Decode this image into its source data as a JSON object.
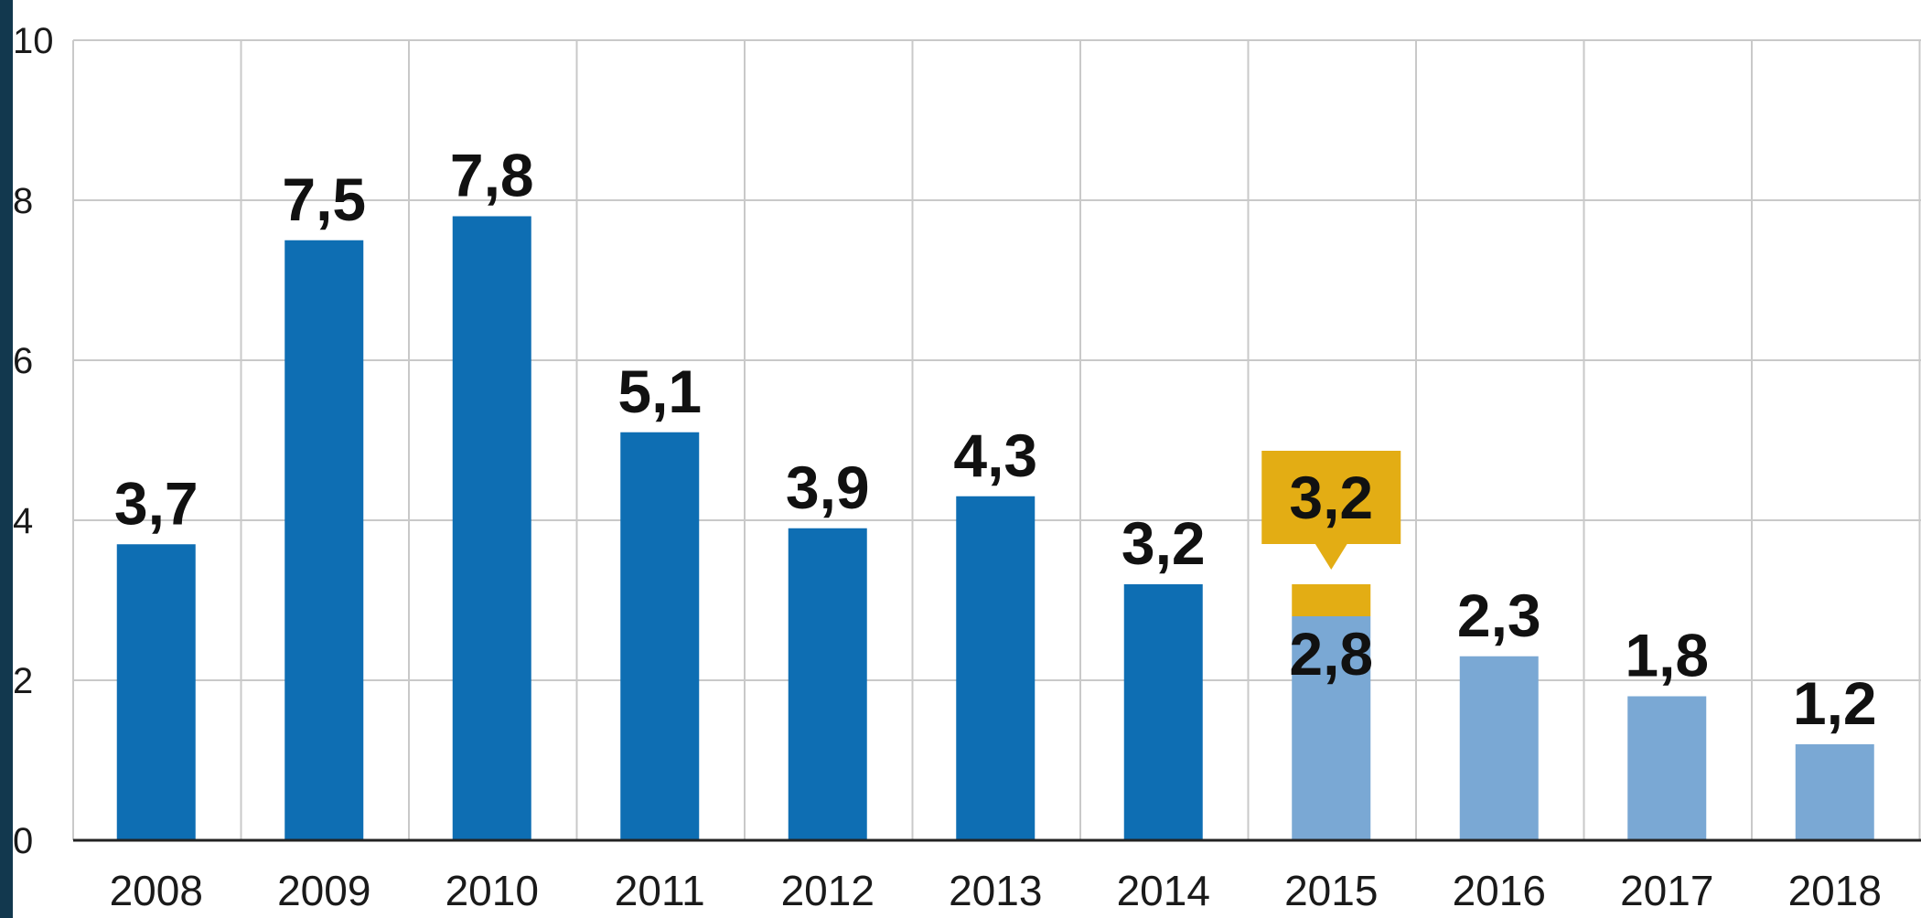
{
  "chart_data": {
    "type": "bar",
    "title": "",
    "xlabel": "",
    "ylabel": "",
    "ylim": [
      0,
      10
    ],
    "yticks": [
      0,
      2,
      4,
      6,
      8,
      10
    ],
    "ytick_labels": [
      "0",
      "2",
      "4",
      "6",
      "8",
      "10"
    ],
    "grid": true,
    "categories": [
      "2008",
      "2009",
      "2010",
      "2011",
      "2012",
      "2013",
      "2014",
      "2015",
      "2016",
      "2017",
      "2018"
    ],
    "values": [
      3.7,
      7.5,
      7.8,
      5.1,
      3.9,
      4.3,
      3.2,
      2.8,
      2.3,
      1.8,
      1.2
    ],
    "value_labels": [
      "3,7",
      "7,5",
      "7,8",
      "5,1",
      "3,9",
      "4,3",
      "3,2",
      "2,8",
      "2,3",
      "1,8",
      "1,2"
    ],
    "bar_style": [
      "actual",
      "actual",
      "actual",
      "actual",
      "actual",
      "actual",
      "actual",
      "forecast",
      "forecast",
      "forecast",
      "forecast"
    ],
    "annotation": {
      "category": "2015",
      "value": 3.2,
      "label": "3,2"
    }
  },
  "colors": {
    "actual": "#0e6eb3",
    "forecast": "#7aa8d4",
    "annotation": "#e3ad14",
    "grid": "#c9c9c9",
    "axis": "#222222",
    "left_strip": "#12384e"
  }
}
